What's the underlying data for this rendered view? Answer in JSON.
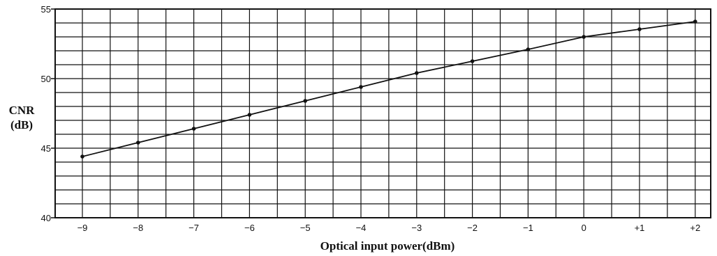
{
  "chart_data": {
    "type": "line",
    "xlabel": "Optical input power(dBm)",
    "ylabel_lines": [
      "CNR",
      "(dB)"
    ],
    "x": [
      "−9",
      "−8",
      "−7",
      "−6",
      "−5",
      "−4",
      "−3",
      "−2",
      "−1",
      "0",
      "+1",
      "+2"
    ],
    "series": [
      {
        "values": [
          44.4,
          45.4,
          46.4,
          47.4,
          48.4,
          49.4,
          50.4,
          51.25,
          52.1,
          53.0,
          53.55,
          54.1
        ]
      }
    ],
    "ylim": [
      40,
      55
    ],
    "yticks": [
      "40",
      "45",
      "50",
      "55"
    ],
    "grid": true,
    "minor_y_step": 1,
    "minor_x_step": 0.5
  }
}
